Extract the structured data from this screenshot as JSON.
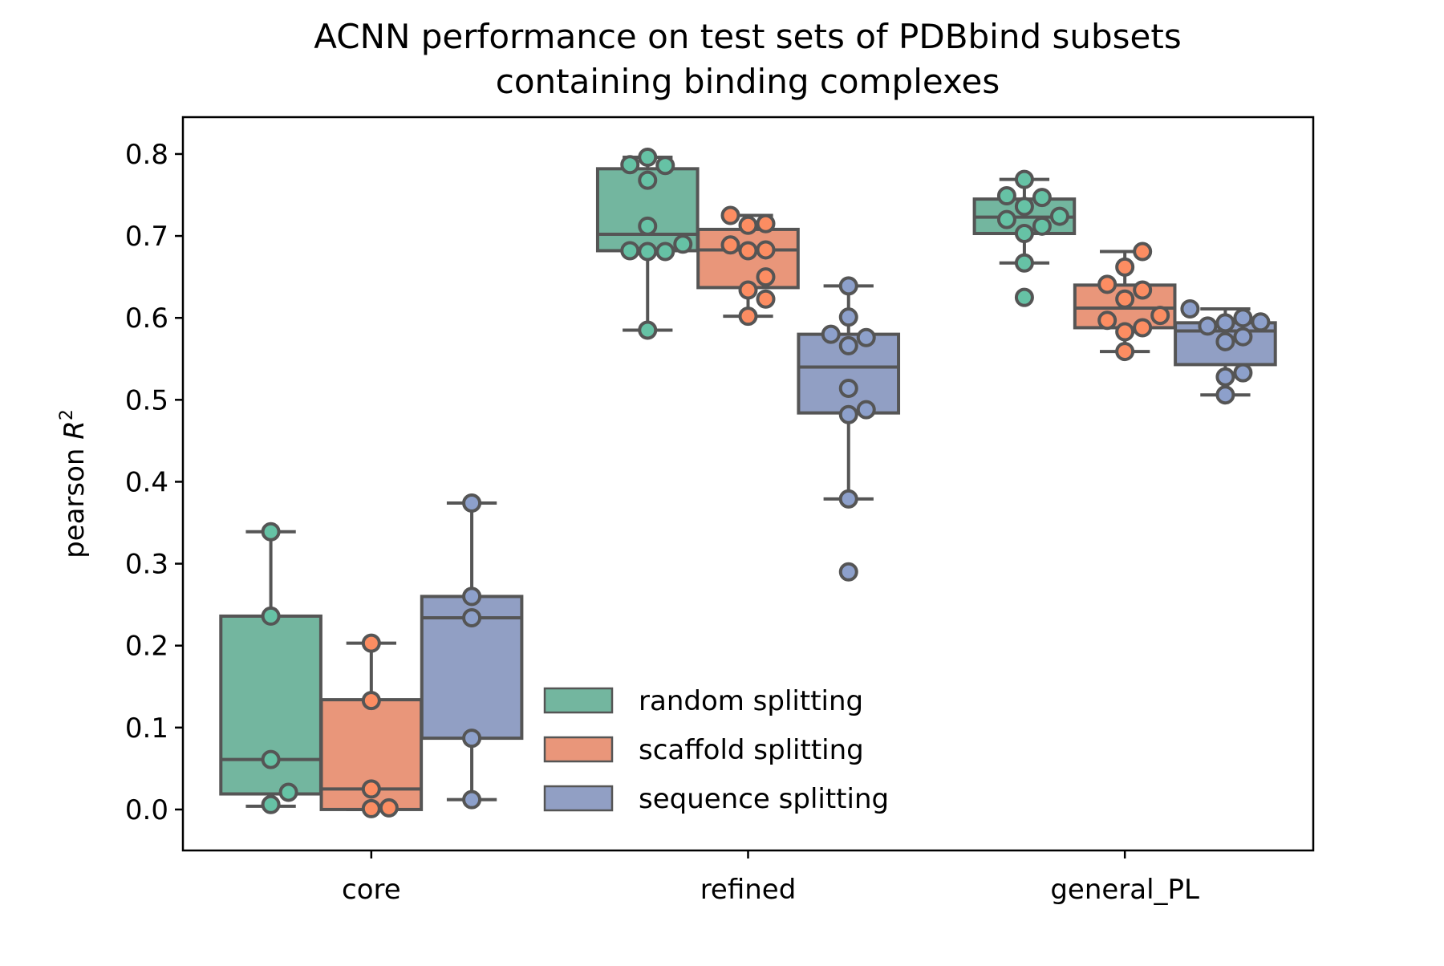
{
  "chart_data": {
    "type": "box",
    "title": "ACNN performance on test sets of PDBbind subsets",
    "subtitle": "containing binding complexes",
    "xlabel": "",
    "ylabel_base": "pearson ",
    "ylabel_symbol": "R",
    "ylabel_superscript": "2",
    "ylim": [
      -0.05,
      0.845
    ],
    "yticks": [
      0.0,
      0.1,
      0.2,
      0.3,
      0.4,
      0.5,
      0.6,
      0.7,
      0.8
    ],
    "ytick_labels": [
      "0.0",
      "0.1",
      "0.2",
      "0.3",
      "0.4",
      "0.5",
      "0.6",
      "0.7",
      "0.8"
    ],
    "grid": false,
    "legend_position": "lower-center",
    "categories": [
      "core",
      "refined",
      "general_PL"
    ],
    "series": [
      {
        "name": "random splitting",
        "color": "#66c2a5",
        "box_color": "#73b69f",
        "boxes": [
          {
            "q1": 0.019,
            "median": 0.061,
            "q3": 0.236,
            "whisker_low": 0.004,
            "whisker_high": 0.339
          },
          {
            "q1": 0.682,
            "median": 0.702,
            "q3": 0.782,
            "whisker_low": 0.585,
            "whisker_high": 0.796
          },
          {
            "q1": 0.703,
            "median": 0.723,
            "q3": 0.745,
            "whisker_low": 0.667,
            "whisker_high": 0.769
          }
        ],
        "points": [
          [
            0.339,
            0.236,
            0.061,
            0.021,
            0.006
          ],
          [
            0.796,
            0.787,
            0.786,
            0.768,
            0.712,
            0.69,
            0.682,
            0.681,
            0.681,
            0.585
          ],
          [
            0.769,
            0.749,
            0.747,
            0.736,
            0.724,
            0.72,
            0.712,
            0.703,
            0.667,
            0.625
          ]
        ]
      },
      {
        "name": "scaffold splitting",
        "color": "#fc8d62",
        "box_color": "#e9967a",
        "boxes": [
          {
            "q1": 0.0,
            "median": 0.025,
            "q3": 0.134,
            "whisker_low": 0.0,
            "whisker_high": 0.203
          },
          {
            "q1": 0.637,
            "median": 0.683,
            "q3": 0.708,
            "whisker_low": 0.602,
            "whisker_high": 0.725
          },
          {
            "q1": 0.588,
            "median": 0.612,
            "q3": 0.64,
            "whisker_low": 0.559,
            "whisker_high": 0.681
          }
        ],
        "points": [
          [
            0.203,
            0.133,
            0.025,
            0.002,
            0.001
          ],
          [
            0.725,
            0.715,
            0.713,
            0.689,
            0.683,
            0.682,
            0.65,
            0.634,
            0.623,
            0.602
          ],
          [
            0.681,
            0.662,
            0.641,
            0.634,
            0.623,
            0.603,
            0.597,
            0.588,
            0.583,
            0.559
          ]
        ]
      },
      {
        "name": "sequence splitting",
        "color": "#8da0cb",
        "box_color": "#919fc4",
        "boxes": [
          {
            "q1": 0.087,
            "median": 0.234,
            "q3": 0.26,
            "whisker_low": 0.012,
            "whisker_high": 0.374
          },
          {
            "q1": 0.484,
            "median": 0.54,
            "q3": 0.58,
            "whisker_low": 0.379,
            "whisker_high": 0.639
          },
          {
            "q1": 0.543,
            "median": 0.584,
            "q3": 0.594,
            "whisker_low": 0.506,
            "whisker_high": 0.611
          }
        ],
        "points": [
          [
            0.374,
            0.26,
            0.234,
            0.087,
            0.012
          ],
          [
            0.639,
            0.601,
            0.58,
            0.576,
            0.566,
            0.514,
            0.488,
            0.482,
            0.379,
            0.29
          ],
          [
            0.611,
            0.6,
            0.595,
            0.594,
            0.59,
            0.577,
            0.571,
            0.533,
            0.528,
            0.506
          ]
        ]
      }
    ]
  }
}
